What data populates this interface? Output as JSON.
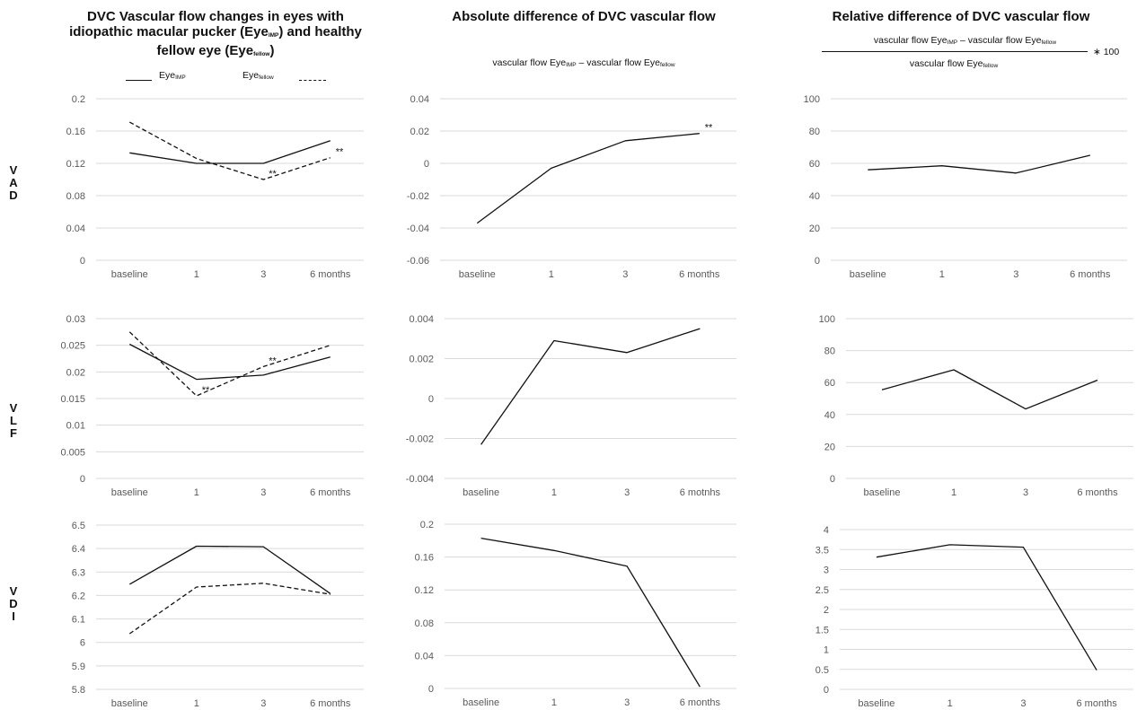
{
  "headers": {
    "col1": {
      "line1": "DVC Vascular flow changes in eyes with",
      "line2_a": "idiopathic macular pucker (Eye",
      "line2_sub": "IMP",
      "line2_b": ") and healthy",
      "line3_a": "fellow eye (Eye",
      "line3_sub": "fellow",
      "line3_b": ")"
    },
    "col2": {
      "title": "Absolute difference of DVC vascular flow",
      "formula_a": "vascular flow Eye",
      "formula_sub1": "IMP",
      "formula_mid": " – vascular flow Eye",
      "formula_sub2": "fellow"
    },
    "col3": {
      "title": "Relative difference of DVC vascular flow",
      "num_a": "vascular flow Eye",
      "num_sub1": "IMP",
      "num_mid": " – vascular flow Eye",
      "num_sub2": "fellow",
      "den_a": "vascular flow Eye",
      "den_sub": "fellow",
      "multiplier": "∗ 100"
    }
  },
  "legend": {
    "imp_base": "Eye",
    "imp_sub": "IMP",
    "fellow_base": "Eye",
    "fellow_sub": "fellow"
  },
  "row_labels": [
    [
      "V",
      "A",
      "D"
    ],
    [
      "V",
      "L",
      "F"
    ],
    [
      "V",
      "D",
      "I"
    ]
  ],
  "chart_data": [
    {
      "id": "vad-values",
      "type": "line",
      "categories": [
        "baseline",
        "1",
        "3",
        "6 months"
      ],
      "ylim": [
        0,
        0.2
      ],
      "yticks": [
        "0",
        "0.04",
        "0.08",
        "0.12",
        "0.16",
        "0.2"
      ],
      "series": [
        {
          "name": "EyeIMP",
          "values": [
            0.133,
            0.12,
            0.12,
            0.148
          ],
          "style": "solid"
        },
        {
          "name": "Eyefellow",
          "values": [
            0.171,
            0.126,
            0.1,
            0.127
          ],
          "style": "dashed"
        }
      ],
      "annotations": [
        {
          "text": "**",
          "x": "3",
          "y": 0.1
        },
        {
          "text": "**",
          "x": "6 months",
          "y": 0.127
        }
      ]
    },
    {
      "id": "vad-abs",
      "type": "line",
      "categories": [
        "baseline",
        "1",
        "3",
        "6 months"
      ],
      "ylim": [
        -0.06,
        0.04
      ],
      "yticks": [
        "-0.06",
        "-0.04",
        "-0.02",
        "0",
        "0.02",
        "0.04"
      ],
      "series": [
        {
          "values": [
            -0.037,
            -0.003,
            0.014,
            0.0185
          ],
          "style": "solid"
        }
      ],
      "annotations": [
        {
          "text": "**",
          "x": "6 months",
          "y": 0.0185
        }
      ]
    },
    {
      "id": "vad-rel",
      "type": "line",
      "categories": [
        "baseline",
        "1",
        "3",
        "6 months"
      ],
      "ylim": [
        0,
        100
      ],
      "yticks": [
        "0",
        "20",
        "40",
        "60",
        "80",
        "100"
      ],
      "series": [
        {
          "values": [
            56,
            58.5,
            54,
            65
          ],
          "style": "solid"
        }
      ],
      "annotations": []
    },
    {
      "id": "vlf-values",
      "type": "line",
      "categories": [
        "baseline",
        "1",
        "3",
        "6 months"
      ],
      "ylim": [
        0,
        0.03
      ],
      "yticks": [
        "0",
        "0.005",
        "0.01",
        "0.015",
        "0.02",
        "0.025",
        "0.03"
      ],
      "series": [
        {
          "name": "EyeIMP",
          "values": [
            0.0252,
            0.0186,
            0.0194,
            0.0228
          ],
          "style": "solid"
        },
        {
          "name": "Eyefellow",
          "values": [
            0.0275,
            0.0155,
            0.021,
            0.025
          ],
          "style": "dashed"
        }
      ],
      "annotations": [
        {
          "text": "**",
          "x": "1",
          "y": 0.0155
        },
        {
          "text": "**",
          "x": "3",
          "y": 0.021
        }
      ]
    },
    {
      "id": "vlf-abs",
      "type": "line",
      "categories": [
        "baseline",
        "1",
        "3",
        "6 motnhs"
      ],
      "ylim": [
        -0.004,
        0.004
      ],
      "yticks": [
        "-0.004",
        "-0.002",
        "0",
        "0.002",
        "0.004"
      ],
      "series": [
        {
          "values": [
            -0.0023,
            0.0029,
            0.0023,
            0.0035
          ],
          "style": "solid"
        }
      ],
      "annotations": []
    },
    {
      "id": "vlf-rel",
      "type": "line",
      "categories": [
        "baseline",
        "1",
        "3",
        "6 months"
      ],
      "ylim": [
        0,
        100
      ],
      "yticks": [
        "0",
        "20",
        "40",
        "60",
        "80",
        "100"
      ],
      "series": [
        {
          "values": [
            55.5,
            68,
            43.5,
            61.5
          ],
          "style": "solid"
        }
      ],
      "annotations": []
    },
    {
      "id": "vdi-values",
      "type": "line",
      "categories": [
        "baseline",
        "1",
        "3",
        "6 months"
      ],
      "ylim": [
        5.8,
        6.5
      ],
      "yticks": [
        "5.8",
        "5.9",
        "6",
        "6.1",
        "6.2",
        "6.3",
        "6.4",
        "6.5"
      ],
      "series": [
        {
          "name": "EyeIMP",
          "values": [
            6.248,
            6.41,
            6.408,
            6.208
          ],
          "style": "solid"
        },
        {
          "name": "Eyefellow",
          "values": [
            6.037,
            6.236,
            6.252,
            6.205
          ],
          "style": "dashed"
        }
      ],
      "annotations": []
    },
    {
      "id": "vdi-abs",
      "type": "line",
      "categories": [
        "baseline",
        "1",
        "3",
        "6 months"
      ],
      "ylim": [
        0,
        0.2
      ],
      "yticks": [
        "0",
        "0.04",
        "0.08",
        "0.12",
        "0.16",
        "0.2"
      ],
      "series": [
        {
          "values": [
            0.183,
            0.168,
            0.149,
            0.002
          ],
          "style": "solid"
        }
      ],
      "annotations": []
    },
    {
      "id": "vdi-rel",
      "type": "line",
      "categories": [
        "baseline",
        "1",
        "3",
        "6 months"
      ],
      "ylim": [
        0,
        4
      ],
      "yticks": [
        "0",
        "0.5",
        "1",
        "1.5",
        "2",
        "2.5",
        "3",
        "3.5",
        "4"
      ],
      "series": [
        {
          "values": [
            3.31,
            3.62,
            3.56,
            0.48
          ],
          "style": "solid"
        }
      ],
      "annotations": []
    }
  ]
}
